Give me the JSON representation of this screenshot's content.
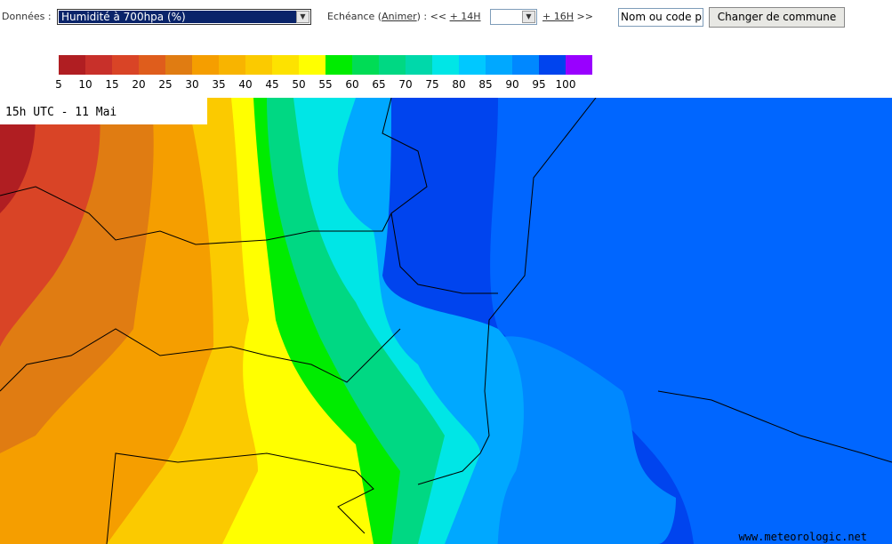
{
  "toolbar": {
    "data_label": "Données :",
    "data_select": "Humidité à 700hpa (%)",
    "echeance_label": "Echéance (",
    "animate_link": "Animer",
    "echeance_sep": ") : <<",
    "prev_link": "+ 14H",
    "next_link": "+ 16H",
    "next_sep": ">>",
    "commune_input": "Nom ou code p",
    "commune_button": "Changer de commune"
  },
  "legend": {
    "labels": [
      "5",
      "10",
      "15",
      "20",
      "25",
      "30",
      "35",
      "40",
      "45",
      "50",
      "55",
      "60",
      "65",
      "70",
      "75",
      "80",
      "85",
      "90",
      "95",
      "100"
    ],
    "colors": [
      "#b01e22",
      "#c8302a",
      "#d94426",
      "#df5d1c",
      "#e07c12",
      "#f59e00",
      "#f8b400",
      "#fbca00",
      "#fde200",
      "#ffff00",
      "#00ec00",
      "#00dc55",
      "#00d883",
      "#00d8aa",
      "#00e6e6",
      "#00c8ff",
      "#00a8ff",
      "#0088ff",
      "#0044ee",
      "#9900ff"
    ]
  },
  "map": {
    "time_label": "15h UTC - 11 Mai",
    "watermark": "www.meteorologic.net"
  }
}
